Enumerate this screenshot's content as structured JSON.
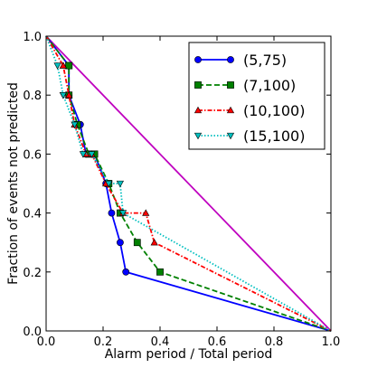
{
  "chart_data": {
    "type": "line",
    "title": "",
    "xlabel": "Alarm period / Total period",
    "ylabel": "Fraction of events not predicted",
    "xlim": [
      0,
      1
    ],
    "ylim": [
      0,
      1
    ],
    "xticks": [
      "0.0",
      "0.2",
      "0.4",
      "0.6",
      "0.8",
      "1.0"
    ],
    "yticks": [
      "0.0",
      "0.2",
      "0.4",
      "0.6",
      "0.8",
      "1.0"
    ],
    "grid": false,
    "legend_position": "top-right",
    "reference_line": {
      "x": [
        0,
        1
      ],
      "y": [
        1,
        0
      ],
      "color": "#bf00bf"
    },
    "series": [
      {
        "name": "(5,75)",
        "color": "#0000ff",
        "style": "solid",
        "marker": "circle",
        "x": [
          0,
          0.08,
          0.08,
          0.08,
          0.12,
          0.14,
          0.17,
          0.21,
          0.23,
          0.26,
          0.28,
          1.0
        ],
        "y": [
          1,
          0.9,
          0.8,
          0.8,
          0.7,
          0.6,
          0.6,
          0.5,
          0.4,
          0.3,
          0.2,
          0
        ]
      },
      {
        "name": "(7,100)",
        "color": "#008000",
        "style": "dashed",
        "marker": "square",
        "x": [
          0,
          0.08,
          0.08,
          0.08,
          0.11,
          0.15,
          0.17,
          0.22,
          0.26,
          0.32,
          0.4,
          1.0
        ],
        "y": [
          1,
          0.9,
          0.9,
          0.8,
          0.7,
          0.6,
          0.6,
          0.5,
          0.4,
          0.3,
          0.2,
          0
        ]
      },
      {
        "name": "(10,100)",
        "color": "#ff0000",
        "style": "dashdot",
        "marker": "triangle-up",
        "x": [
          0,
          0.06,
          0.06,
          0.08,
          0.1,
          0.14,
          0.16,
          0.21,
          0.27,
          0.35,
          0.38,
          1.0
        ],
        "y": [
          1,
          0.9,
          0.9,
          0.8,
          0.7,
          0.6,
          0.6,
          0.5,
          0.4,
          0.4,
          0.3,
          0
        ]
      },
      {
        "name": "(15,100)",
        "color": "#00bfbf",
        "style": "dotted",
        "marker": "triangle-down",
        "x": [
          0,
          0.04,
          0.06,
          0.06,
          0.1,
          0.13,
          0.16,
          0.22,
          0.26,
          0.27,
          1.0
        ],
        "y": [
          1,
          0.9,
          0.8,
          0.8,
          0.7,
          0.6,
          0.6,
          0.5,
          0.5,
          0.4,
          0
        ]
      }
    ]
  }
}
